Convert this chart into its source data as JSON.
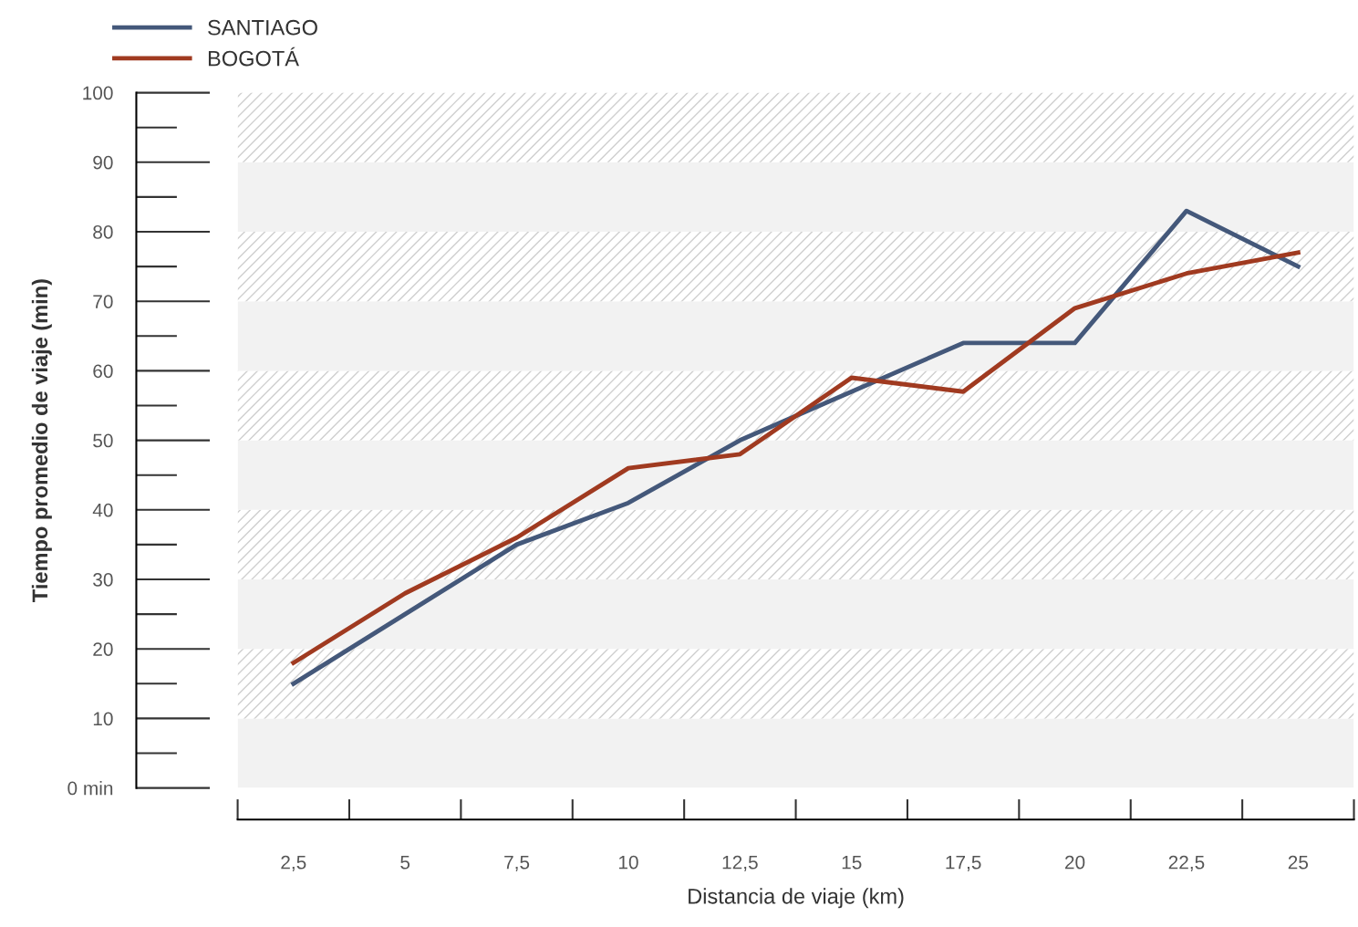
{
  "chart_data": {
    "type": "line",
    "xlabel": "Distancia de viaje (km)",
    "ylabel": "Tiempo promedio de viaje (min)",
    "categories": [
      "2,5",
      "5",
      "7,5",
      "10",
      "12,5",
      "15",
      "17,5",
      "20",
      "22,5",
      "25"
    ],
    "series": [
      {
        "name": "SANTIAGO",
        "color": "#44587a",
        "values": [
          15,
          25,
          35,
          41,
          50,
          57,
          64,
          64,
          83,
          75
        ]
      },
      {
        "name": "BOGOTÁ",
        "color": "#a03a20",
        "values": [
          18,
          28,
          36,
          46,
          48,
          59,
          57,
          69,
          74,
          77
        ]
      }
    ],
    "ylim": [
      0,
      100
    ],
    "yticks": [
      {
        "value": 0,
        "label": "0 min"
      },
      10,
      20,
      30,
      40,
      50,
      60,
      70,
      80,
      90,
      100
    ],
    "bands": [
      {
        "axis": "y",
        "from": 0,
        "to": 10,
        "color": "#f2f2f2"
      },
      {
        "axis": "y",
        "from": 10,
        "to": 20,
        "color": "#cfcfcf"
      },
      {
        "axis": "y",
        "from": 20,
        "to": 30,
        "color": "#f2f2f2"
      },
      {
        "axis": "y",
        "from": 30,
        "to": 40,
        "color": "#cfcfcf"
      },
      {
        "axis": "y",
        "from": 40,
        "to": 50,
        "color": "#f2f2f2"
      },
      {
        "axis": "y",
        "from": 50,
        "to": 60,
        "color": "#cfcfcf"
      },
      {
        "axis": "y",
        "from": 60,
        "to": 70,
        "color": "#f2f2f2"
      },
      {
        "axis": "y",
        "from": 70,
        "to": 80,
        "color": "#cfcfcf"
      },
      {
        "axis": "y",
        "from": 80,
        "to": 90,
        "color": "#f2f2f2"
      },
      {
        "axis": "y",
        "from": 90,
        "to": 100,
        "color": "#cfcfcf"
      }
    ],
    "grid": false,
    "legend": "top left",
    "marker": "none",
    "line_style": "solid"
  }
}
